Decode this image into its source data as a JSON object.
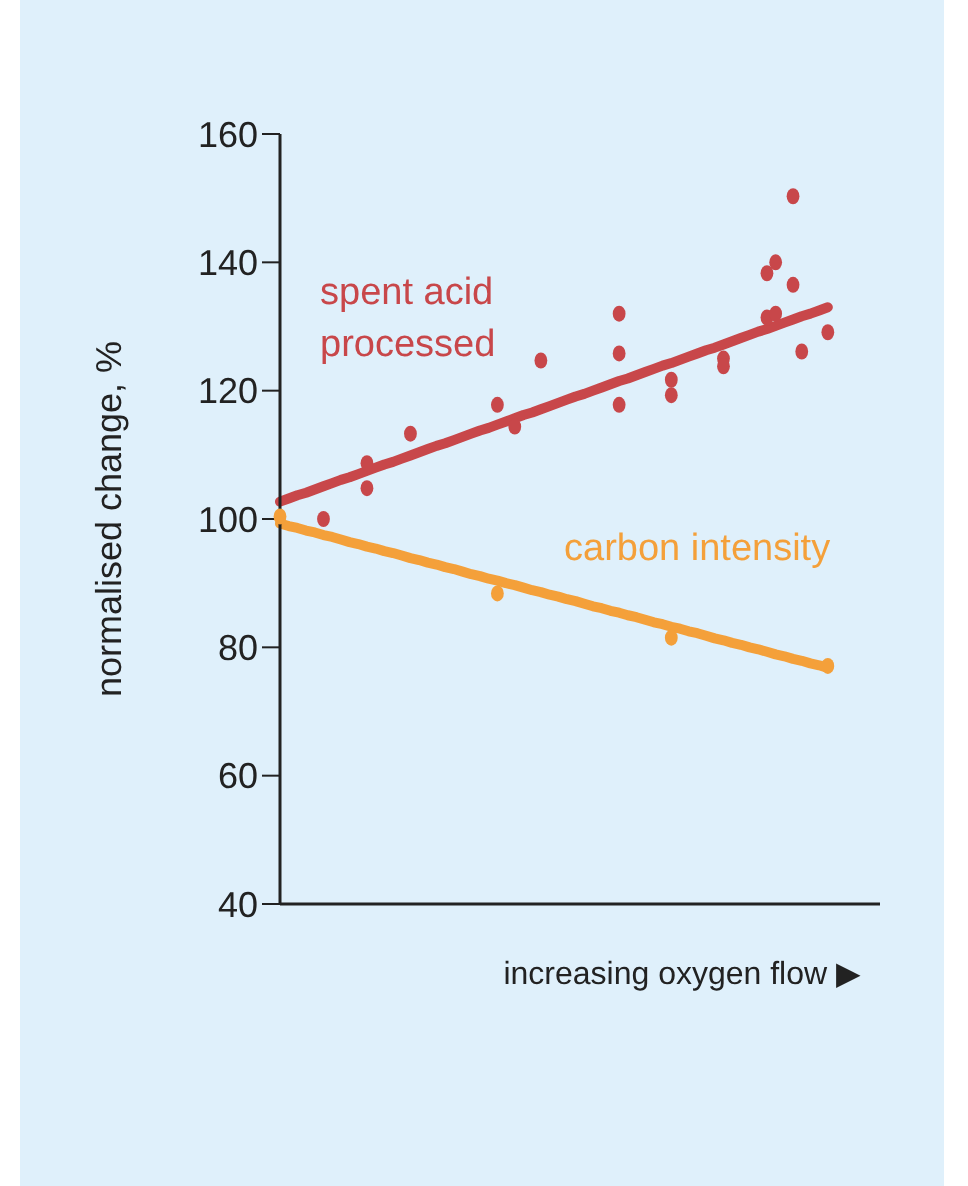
{
  "chart_data": {
    "type": "scatter",
    "xlabel": "increasing oxygen flow ▶",
    "ylabel": "normalised change, %",
    "categories": [
      null,
      null,
      null,
      null,
      null,
      null,
      null,
      null,
      null,
      null,
      null,
      null,
      null,
      null,
      null,
      null,
      null,
      null,
      null,
      null,
      null,
      null,
      null,
      null,
      null,
      null,
      null,
      null,
      null,
      null,
      null,
      null,
      null,
      null,
      null,
      null,
      null,
      null,
      null,
      null,
      null,
      null,
      null,
      null,
      null,
      null,
      null,
      null,
      null,
      null,
      null,
      null,
      null,
      null,
      null,
      null,
      null,
      null,
      null,
      null,
      null,
      null,
      null,
      null,
      null,
      null,
      null,
      null,
      null,
      null
    ],
    "ylim": [
      40,
      160
    ],
    "yticks": [
      40,
      60,
      80,
      100,
      120,
      140,
      160
    ],
    "tick_labels": "y",
    "series": [
      {
        "name": "spent acid processed",
        "color": "#c8474a",
        "values": [
          null,
          null,
          null,
          null,
          null,
          100,
          null,
          null,
          null,
          null,
          108.7,
          null,
          null,
          null,
          null,
          113.3,
          null,
          null,
          null,
          null,
          null,
          null,
          null,
          null,
          null,
          117.8,
          null,
          114.4,
          null,
          null,
          124.7,
          null,
          null,
          null,
          null,
          null,
          null,
          null,
          null,
          132,
          null,
          null,
          null,
          null,
          null,
          121.7,
          null,
          null,
          null,
          null,
          null,
          125,
          null,
          null,
          null,
          null,
          138.3,
          140,
          null,
          150.3,
          126.1,
          null,
          null,
          129.1,
          null,
          null,
          null,
          null,
          null,
          null
        ]
      },
      {
        "color": "#c8474a",
        "values": [
          null,
          null,
          null,
          null,
          null,
          null,
          null,
          null,
          null,
          null,
          104.8,
          null,
          null,
          null,
          null,
          null,
          null,
          null,
          null,
          null,
          null,
          null,
          null,
          null,
          null,
          null,
          null,
          null,
          null,
          null,
          null,
          null,
          null,
          null,
          null,
          null,
          null,
          null,
          null,
          125.8,
          null,
          null,
          null,
          null,
          null,
          119.3,
          null,
          null,
          null,
          null,
          null,
          123.8,
          null,
          null,
          null,
          null,
          131.4,
          132,
          null,
          136.5,
          null,
          null,
          null,
          null,
          null,
          null,
          null,
          null,
          null,
          null
        ]
      },
      {
        "color": "#c8474a",
        "values": [
          null,
          null,
          null,
          null,
          null,
          null,
          null,
          null,
          null,
          null,
          null,
          null,
          null,
          null,
          null,
          null,
          null,
          null,
          null,
          null,
          null,
          null,
          null,
          null,
          null,
          null,
          null,
          null,
          null,
          null,
          null,
          null,
          null,
          null,
          null,
          null,
          null,
          null,
          null,
          117.8,
          null,
          null,
          null,
          null,
          null,
          null,
          null,
          null,
          null,
          null,
          null,
          null,
          null,
          null,
          null,
          null,
          null,
          null,
          null,
          null,
          null,
          null,
          null,
          null,
          null,
          null,
          null,
          null,
          null,
          null
        ]
      },
      {
        "type": "line",
        "color": "#c8474a",
        "values": [
          102.7,
          103.2,
          103.7,
          104.1,
          104.6,
          105.1,
          105.6,
          106.1,
          106.5,
          107.0,
          107.5,
          108.0,
          108.5,
          108.9,
          109.4,
          109.9,
          110.4,
          110.9,
          111.4,
          111.8,
          112.3,
          112.8,
          113.3,
          113.8,
          114.2,
          114.7,
          115.2,
          115.7,
          116.2,
          116.6,
          117.1,
          117.6,
          118.1,
          118.6,
          119.1,
          119.5,
          120.0,
          120.5,
          121.0,
          121.5,
          121.9,
          122.4,
          122.9,
          123.4,
          123.9,
          124.3,
          124.8,
          125.3,
          125.8,
          126.3,
          126.7,
          127.2,
          127.7,
          128.2,
          128.7,
          129.2,
          129.6,
          130.1,
          130.6,
          131.1,
          131.6,
          132.0,
          132.5,
          133.0,
          null,
          null,
          null,
          null,
          null,
          null
        ]
      },
      {
        "name": "carbon intensity",
        "color": "#f4a03a",
        "values": [
          100.4,
          null,
          null,
          null,
          null,
          null,
          null,
          null,
          null,
          null,
          null,
          null,
          null,
          null,
          null,
          null,
          null,
          null,
          null,
          null,
          null,
          null,
          null,
          null,
          null,
          88.4,
          null,
          null,
          null,
          null,
          null,
          null,
          null,
          null,
          null,
          null,
          null,
          null,
          null,
          null,
          null,
          null,
          null,
          null,
          null,
          81.5,
          null,
          null,
          null,
          null,
          null,
          null,
          null,
          null,
          null,
          null,
          null,
          null,
          null,
          null,
          null,
          null,
          null,
          77.1,
          null,
          null,
          null,
          null,
          null,
          null
        ]
      },
      {
        "type": "line",
        "color": "#f4a03a",
        "values": [
          99.3,
          98.9,
          98.6,
          98.2,
          97.9,
          97.5,
          97.2,
          96.8,
          96.4,
          96.1,
          95.7,
          95.4,
          95.0,
          94.7,
          94.3,
          93.9,
          93.6,
          93.2,
          92.9,
          92.5,
          92.2,
          91.8,
          91.4,
          91.1,
          90.7,
          90.4,
          90.0,
          89.7,
          89.3,
          88.9,
          88.6,
          88.2,
          87.9,
          87.5,
          87.2,
          86.8,
          86.4,
          86.1,
          85.7,
          85.4,
          85.0,
          84.7,
          84.3,
          83.9,
          83.6,
          83.2,
          82.9,
          82.5,
          82.2,
          81.8,
          81.4,
          81.1,
          80.7,
          80.4,
          80.0,
          79.7,
          79.3,
          78.9,
          78.6,
          78.2,
          77.9,
          77.5,
          77.2,
          76.8,
          null,
          null,
          null,
          null,
          null,
          null
        ]
      }
    ]
  }
}
